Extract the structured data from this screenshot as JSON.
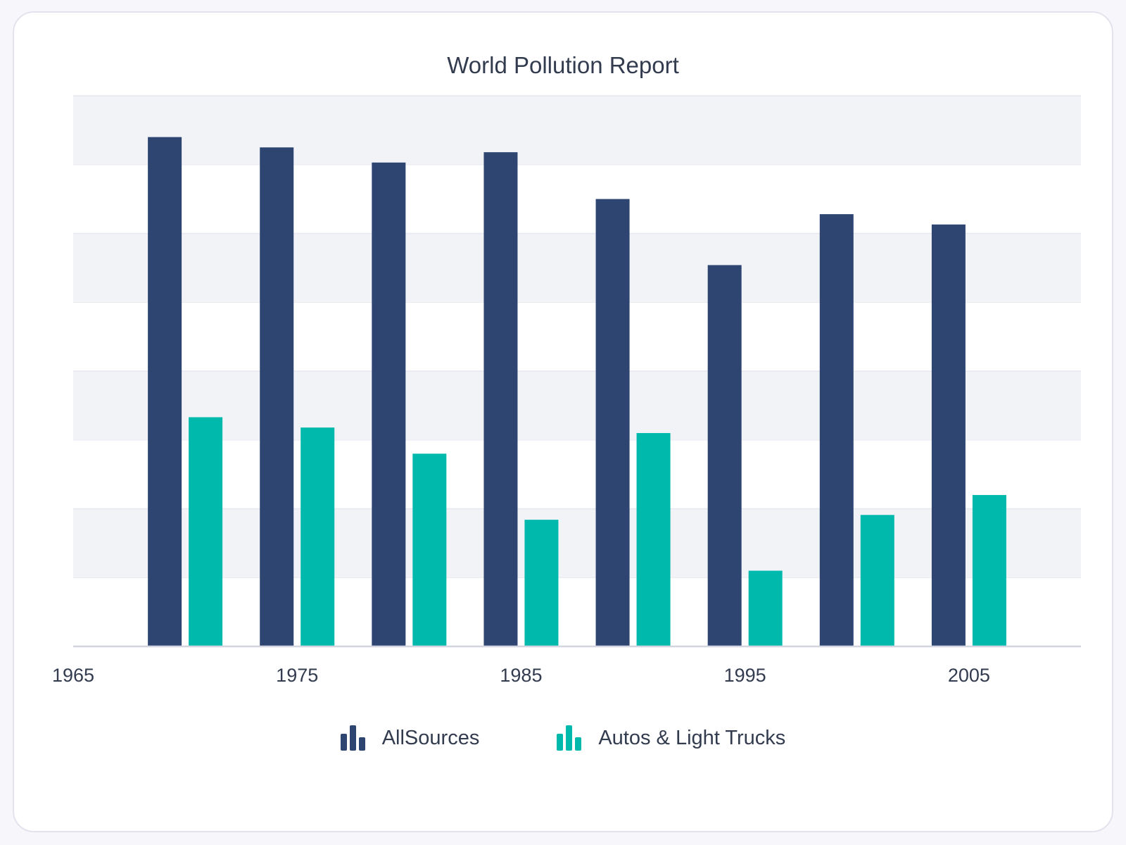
{
  "chart_data": {
    "type": "bar",
    "title": "World Pollution Report",
    "categories": [
      "1970",
      "1975",
      "1980",
      "1985",
      "1990",
      "1995",
      "2000",
      "2005"
    ],
    "x_tick_labels": [
      "1965",
      "1975",
      "1985",
      "1995",
      "2005"
    ],
    "x_tick_values": [
      1965,
      1975,
      1985,
      1995,
      2005
    ],
    "x_range": [
      1965,
      2010
    ],
    "category_x": [
      1970,
      1975,
      1980,
      1985,
      1990,
      1995,
      2000,
      2005
    ],
    "ylim": [
      0,
      8
    ],
    "y_tick_labels_shown": false,
    "grid": "horizontal alternating bands",
    "legend_position": "bottom",
    "series": [
      {
        "name": "AllSources",
        "color": "#2e4572",
        "values": [
          7.4,
          7.25,
          7.03,
          7.18,
          6.5,
          5.54,
          6.28,
          6.13
        ]
      },
      {
        "name": "Autos & Light Trucks",
        "color": "#00b9ad",
        "values": [
          3.33,
          3.18,
          2.8,
          1.84,
          3.1,
          1.1,
          1.91,
          2.2
        ]
      }
    ]
  }
}
